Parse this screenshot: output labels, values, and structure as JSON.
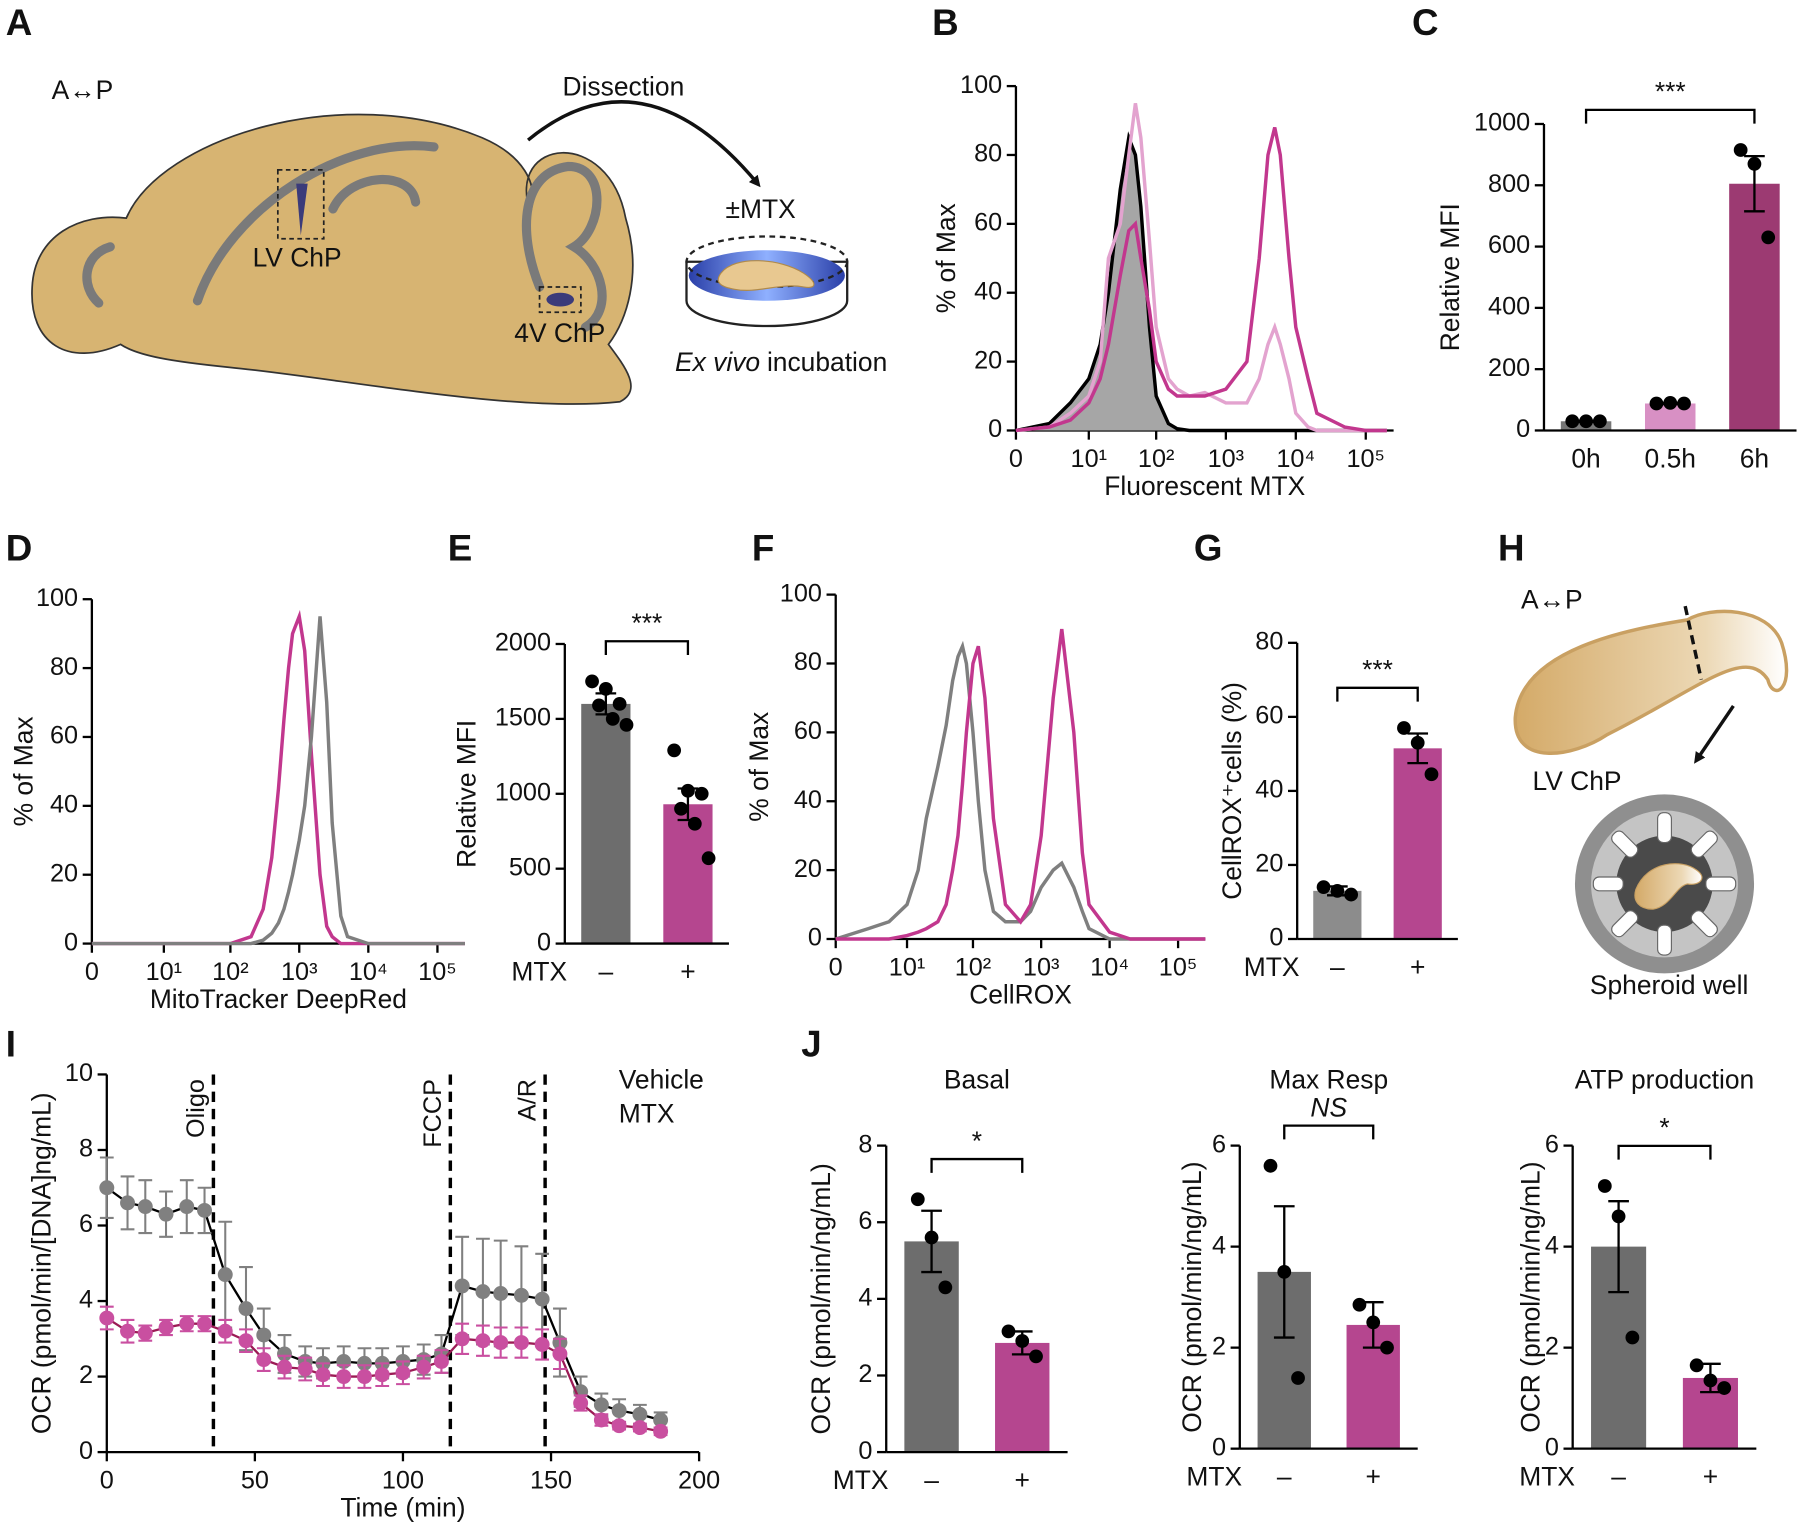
{
  "panel_labels": [
    "A",
    "B",
    "C",
    "D",
    "E",
    "F",
    "G",
    "H",
    "I",
    "J"
  ],
  "diagram_a": {
    "orientation": "A↔P",
    "arrow_label": "Dissection",
    "treatment": "±MTX",
    "lv_label": "LV ChP",
    "fourth_label": "4V ChP",
    "caption_italic": "Ex vivo",
    "caption": "incubation"
  },
  "diagram_h": {
    "orientation": "A↔P",
    "chp_label": "LV ChP",
    "well_label": "Spheroid well"
  },
  "chart_data": [
    {
      "type": "line",
      "xscale": "symlog",
      "x": [
        0,
        2,
        5,
        10,
        15,
        20,
        30,
        40,
        50,
        60,
        80,
        100,
        150,
        200,
        300,
        500,
        1000,
        2000,
        3000,
        4000,
        5000,
        6000,
        8000,
        10000,
        15000,
        20000,
        50000,
        100000,
        200000
      ],
      "series": [
        {
          "color": "#000000",
          "fill": "#a6a6a6",
          "values": [
            0,
            2,
            8,
            15,
            25,
            40,
            70,
            85,
            80,
            65,
            30,
            10,
            2,
            0.5,
            0,
            0,
            0,
            0,
            0,
            0,
            0,
            0,
            0,
            0,
            0,
            0,
            0,
            0,
            0
          ]
        },
        {
          "color": "#e3a3cf",
          "values": [
            0,
            1,
            5,
            10,
            20,
            50,
            60,
            80,
            95,
            85,
            55,
            30,
            15,
            12,
            10,
            11,
            8,
            8,
            15,
            25,
            30,
            25,
            15,
            5,
            1,
            0,
            0,
            0,
            0
          ]
        },
        {
          "color": "#c2378e",
          "values": [
            0,
            1,
            3,
            8,
            15,
            25,
            45,
            58,
            60,
            50,
            35,
            20,
            12,
            10,
            10,
            10,
            12,
            20,
            50,
            80,
            88,
            80,
            50,
            30,
            15,
            5,
            1,
            0,
            0
          ]
        }
      ],
      "xlim": [
        0,
        250000
      ],
      "xticks": [
        0,
        {
          "value": 10,
          "label": "10¹"
        },
        {
          "value": 100,
          "label": "10²"
        },
        {
          "value": 1000,
          "label": "10³"
        },
        {
          "value": 10000,
          "label": "10⁴"
        },
        {
          "value": 100000,
          "label": "10⁵"
        }
      ],
      "ylim": [
        0,
        100
      ],
      "yticks": [
        0,
        20,
        40,
        60,
        80,
        100
      ],
      "xlabel": "Fluorescent MTX",
      "ylabel": "% of Max"
    },
    {
      "type": "bar",
      "categories": [
        "0h",
        "0.5h",
        "6h"
      ],
      "colors": [
        "#777777",
        "#d890c4",
        "#9c3a72"
      ],
      "values": [
        30,
        88,
        805
      ],
      "errors": [
        2,
        2,
        90
      ],
      "points": [
        [
          30,
          30,
          30
        ],
        [
          88,
          90,
          88
        ],
        [
          915,
          870,
          630
        ]
      ],
      "ylim": [
        0,
        1000
      ],
      "yticks": [
        0,
        200,
        400,
        600,
        800,
        1000
      ],
      "ylabel": "Relative MFI",
      "significance": "***"
    },
    {
      "type": "line",
      "xscale": "symlog",
      "x": [
        0,
        100,
        200,
        300,
        400,
        500,
        600,
        700,
        800,
        1000,
        1200,
        1500,
        2000,
        2500,
        3000,
        4000,
        5000,
        10000,
        250000
      ],
      "series": [
        {
          "color": "#c2378e",
          "values": [
            0,
            0,
            2,
            10,
            25,
            45,
            65,
            80,
            90,
            95,
            85,
            55,
            20,
            5,
            2,
            0,
            0,
            0,
            0
          ]
        },
        {
          "color": "#7f7f7f",
          "values": [
            0,
            0,
            0,
            1,
            3,
            6,
            10,
            15,
            20,
            30,
            40,
            60,
            95,
            70,
            35,
            8,
            2,
            0,
            0
          ]
        }
      ],
      "xlim": [
        0,
        250000
      ],
      "xticks": [
        0,
        {
          "value": 10,
          "label": "10¹"
        },
        {
          "value": 100,
          "label": "10²"
        },
        {
          "value": 1000,
          "label": "10³"
        },
        {
          "value": 10000,
          "label": "10⁴"
        },
        {
          "value": 100000,
          "label": "10⁵"
        }
      ],
      "ylim": [
        0,
        100
      ],
      "yticks": [
        0,
        20,
        40,
        60,
        80,
        100
      ],
      "xlabel": "MitoTracker DeepRed",
      "ylabel": "% of Max"
    },
    {
      "type": "bar",
      "categories": [
        "–",
        "+"
      ],
      "category_axis_label": "MTX",
      "colors": [
        "#6d6d6d",
        "#b5468f"
      ],
      "values": [
        1600,
        930
      ],
      "errors": [
        70,
        105
      ],
      "points": [
        [
          1750,
          1700,
          1600,
          1590,
          1500,
          1460
        ],
        [
          1290,
          1020,
          1000,
          900,
          800,
          570
        ]
      ],
      "ylim": [
        0,
        2000
      ],
      "yticks": [
        0,
        500,
        1000,
        1500,
        2000
      ],
      "ylabel": "Relative MFI",
      "significance": "***"
    },
    {
      "type": "line",
      "xscale": "symlog",
      "x": [
        0,
        2,
        5,
        10,
        15,
        20,
        30,
        40,
        50,
        60,
        70,
        80,
        100,
        120,
        150,
        200,
        300,
        500,
        700,
        1000,
        1500,
        2000,
        3000,
        4000,
        5000,
        10000,
        20000,
        250000
      ],
      "series": [
        {
          "color": "#7f7f7f",
          "values": [
            0,
            3,
            5,
            10,
            20,
            35,
            50,
            62,
            75,
            82,
            85,
            80,
            60,
            40,
            20,
            8,
            5,
            5,
            8,
            15,
            20,
            22,
            15,
            8,
            3,
            0,
            0,
            0
          ]
        },
        {
          "color": "#c2378e",
          "values": [
            0,
            0,
            0,
            1,
            2,
            3,
            5,
            10,
            20,
            30,
            45,
            60,
            80,
            85,
            70,
            35,
            10,
            5,
            10,
            30,
            70,
            90,
            60,
            25,
            10,
            2,
            0,
            0
          ]
        }
      ],
      "xlim": [
        0,
        250000
      ],
      "xticks": [
        0,
        {
          "value": 10,
          "label": "10¹"
        },
        {
          "value": 100,
          "label": "10²"
        },
        {
          "value": 1000,
          "label": "10³"
        },
        {
          "value": 10000,
          "label": "10⁴"
        },
        {
          "value": 100000,
          "label": "10⁵"
        }
      ],
      "ylim": [
        0,
        100
      ],
      "yticks": [
        0,
        20,
        40,
        60,
        80,
        100
      ],
      "xlabel": "CellROX",
      "ylabel": "% of Max"
    },
    {
      "type": "bar",
      "categories": [
        "–",
        "+"
      ],
      "category_axis_label": "MTX",
      "colors": [
        "#8c8c8c",
        "#b5468f"
      ],
      "values": [
        13,
        51.5
      ],
      "errors": [
        1.2,
        4
      ],
      "points": [
        [
          14,
          13,
          12
        ],
        [
          57,
          53,
          44.5
        ]
      ],
      "ylim": [
        0,
        80
      ],
      "yticks": [
        0,
        20,
        40,
        60,
        80
      ],
      "ylabel": "CellROX⁺cells (%)",
      "significance": "***"
    },
    {
      "type": "line",
      "markers": true,
      "legend": "top-right",
      "x": [
        0,
        7,
        13,
        20,
        27,
        33,
        40,
        47,
        53,
        60,
        67,
        73,
        80,
        87,
        93,
        100,
        107,
        113,
        120,
        127,
        133,
        140,
        147,
        153,
        160,
        167,
        173,
        180,
        187
      ],
      "series": [
        {
          "name": "Vehicle",
          "color": "#808080",
          "line_color": "#000000",
          "values": [
            7.0,
            6.6,
            6.5,
            6.3,
            6.5,
            6.4,
            4.7,
            3.8,
            3.1,
            2.6,
            2.4,
            2.35,
            2.4,
            2.35,
            2.35,
            2.4,
            2.45,
            2.6,
            4.4,
            4.25,
            4.2,
            4.15,
            4.05,
            2.9,
            1.6,
            1.25,
            1.1,
            1.0,
            0.85
          ],
          "errors": [
            0.8,
            0.7,
            0.7,
            0.6,
            0.7,
            0.6,
            1.4,
            1.1,
            0.7,
            0.5,
            0.4,
            0.4,
            0.4,
            0.4,
            0.4,
            0.4,
            0.4,
            0.5,
            1.3,
            1.4,
            1.4,
            1.3,
            1.2,
            0.9,
            0.4,
            0.3,
            0.3,
            0.25,
            0.2
          ]
        },
        {
          "name": "MTX",
          "color": "#c94fa0",
          "line_color": "#9b1b55",
          "values": [
            3.55,
            3.2,
            3.15,
            3.3,
            3.4,
            3.4,
            3.2,
            2.95,
            2.45,
            2.25,
            2.2,
            2.05,
            2.0,
            2.0,
            2.05,
            2.1,
            2.25,
            2.4,
            3.0,
            2.95,
            2.9,
            2.9,
            2.85,
            2.6,
            1.3,
            0.85,
            0.7,
            0.65,
            0.55
          ],
          "errors": [
            0.3,
            0.3,
            0.2,
            0.2,
            0.2,
            0.2,
            0.3,
            0.3,
            0.3,
            0.3,
            0.3,
            0.3,
            0.3,
            0.3,
            0.3,
            0.3,
            0.3,
            0.3,
            0.4,
            0.4,
            0.4,
            0.4,
            0.4,
            0.4,
            0.2,
            0.15,
            0.1,
            0.1,
            0.1
          ]
        }
      ],
      "vlines": [
        {
          "x": 36,
          "label": "Oligo"
        },
        {
          "x": 116,
          "label": "FCCP"
        },
        {
          "x": 148,
          "label": "A/R"
        }
      ],
      "xlim": [
        0,
        200
      ],
      "xticks": [
        0,
        50,
        100,
        150,
        200
      ],
      "ylim": [
        0,
        10
      ],
      "yticks": [
        0,
        2,
        4,
        6,
        8,
        10
      ],
      "xlabel": "Time (min)",
      "ylabel": "OCR (pmol/min/[DNA]ng/mL)"
    },
    {
      "type": "bar",
      "title": "Basal",
      "categories": [
        "–",
        "+"
      ],
      "category_axis_label": "MTX",
      "colors": [
        "#6d6d6d",
        "#b5468f"
      ],
      "values": [
        5.5,
        2.85
      ],
      "errors": [
        0.8,
        0.3
      ],
      "points": [
        [
          6.6,
          5.6,
          4.3
        ],
        [
          3.15,
          2.9,
          2.5
        ]
      ],
      "ylim": [
        0,
        8
      ],
      "yticks": [
        0,
        2,
        4,
        6,
        8
      ],
      "ylabel": "OCR (pmol/min/ng/mL)",
      "significance": "*"
    },
    {
      "type": "bar",
      "title": "Max Resp",
      "categories": [
        "–",
        "+"
      ],
      "category_axis_label": "MTX",
      "colors": [
        "#6d6d6d",
        "#b5468f"
      ],
      "values": [
        3.5,
        2.45
      ],
      "errors": [
        1.3,
        0.45
      ],
      "points": [
        [
          5.6,
          3.5,
          1.4
        ],
        [
          2.85,
          2.5,
          2.0
        ]
      ],
      "ylim": [
        0,
        6
      ],
      "yticks": [
        0,
        2,
        4,
        6
      ],
      "ylabel": "OCR (pmol/min/ng/mL)",
      "significance": "NS",
      "significance_italic": true
    },
    {
      "type": "bar",
      "title": "ATP production",
      "categories": [
        "–",
        "+"
      ],
      "category_axis_label": "MTX",
      "colors": [
        "#6d6d6d",
        "#b5468f"
      ],
      "values": [
        4.0,
        1.4
      ],
      "errors": [
        0.9,
        0.28
      ],
      "points": [
        [
          5.2,
          4.6,
          2.2
        ],
        [
          1.65,
          1.35,
          1.2
        ]
      ],
      "ylim": [
        0,
        6
      ],
      "yticks": [
        0,
        2,
        4,
        6
      ],
      "ylabel": "OCR (pmol/min/ng/mL)",
      "significance": "*"
    }
  ]
}
